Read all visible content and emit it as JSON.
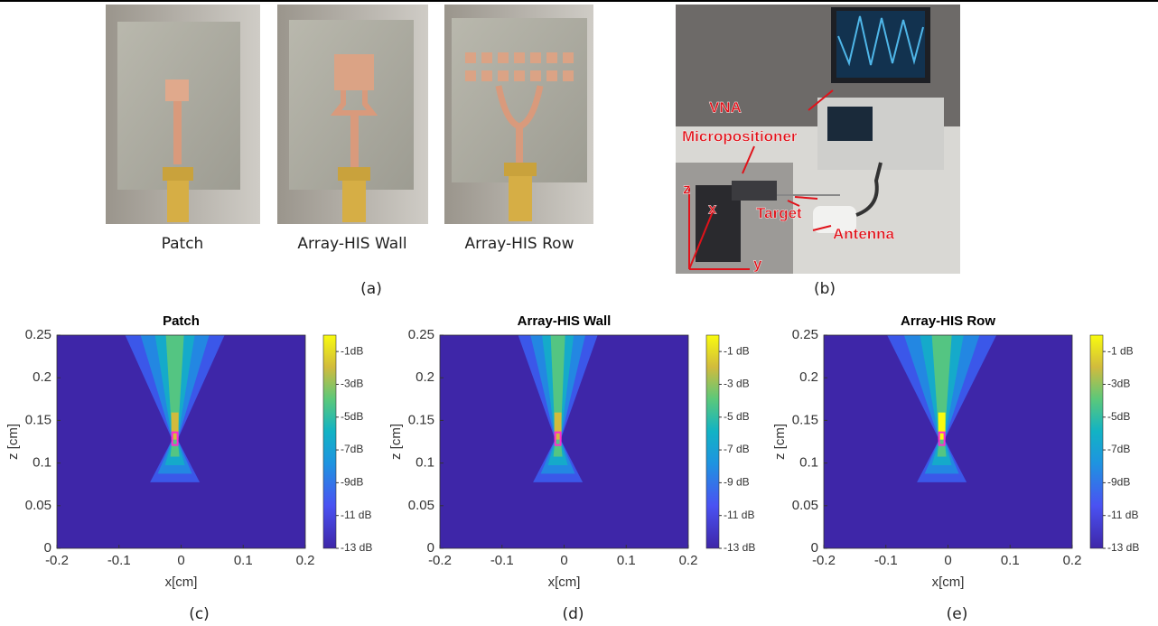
{
  "figure": {
    "photos": [
      "Patch",
      "Array-HIS Wall",
      "Array-HIS Row"
    ],
    "caption_a": "(a)",
    "setup_labels": {
      "vna": "VNA",
      "micropositioner": "Micropositioner",
      "target": "Target",
      "antenna": "Antenna",
      "z": "z",
      "x": "x",
      "y": "y"
    },
    "caption_b": "(b)",
    "plots": [
      {
        "title": "Patch",
        "xlabel": "x[cm]",
        "ylabel": "z [cm]",
        "caption": "(c)",
        "xlim": [
          -0.2,
          0.2
        ],
        "xticks": [
          -0.2,
          -0.1,
          0,
          0.1,
          0.2
        ],
        "ylim": [
          0,
          0.25
        ],
        "yticks": [
          0,
          0.05,
          0.1,
          0.15,
          0.2,
          0.25
        ],
        "clim": [
          -13,
          0
        ],
        "cticks": [
          {
            "value": -1,
            "label": "-1dB"
          },
          {
            "value": -3,
            "label": "-3dB"
          },
          {
            "value": -5,
            "label": "-5dB"
          },
          {
            "value": -7,
            "label": "-7dB"
          },
          {
            "value": -9,
            "label": "-9dB"
          },
          {
            "value": -11,
            "label": "-11 dB"
          },
          {
            "value": -13,
            "label": "-13 dB"
          }
        ]
      },
      {
        "title": "Array-HIS Wall",
        "xlabel": "x[cm]",
        "ylabel": "z [cm]",
        "caption": "(d)",
        "xlim": [
          -0.2,
          0.2
        ],
        "xticks": [
          -0.2,
          -0.1,
          0,
          0.1,
          0.2
        ],
        "ylim": [
          0,
          0.25
        ],
        "yticks": [
          0,
          0.05,
          0.1,
          0.15,
          0.2,
          0.25
        ],
        "clim": [
          -13,
          0
        ],
        "cticks": [
          {
            "value": -1,
            "label": "-1 dB"
          },
          {
            "value": -3,
            "label": "-3 dB"
          },
          {
            "value": -5,
            "label": "-5 dB"
          },
          {
            "value": -7,
            "label": "-7 dB"
          },
          {
            "value": -9,
            "label": "-9 dB"
          },
          {
            "value": -11,
            "label": "-11 dB"
          },
          {
            "value": -13,
            "label": "-13 dB"
          }
        ]
      },
      {
        "title": "Array-HIS Row",
        "xlabel": "x[cm]",
        "ylabel": "z [cm]",
        "caption": "(e)",
        "xlim": [
          -0.2,
          0.2
        ],
        "xticks": [
          -0.2,
          -0.1,
          0,
          0.1,
          0.2
        ],
        "ylim": [
          0,
          0.25
        ],
        "yticks": [
          0,
          0.05,
          0.1,
          0.15,
          0.2,
          0.25
        ],
        "clim": [
          -13,
          0
        ],
        "cticks": [
          {
            "value": -1,
            "label": "-1 dB"
          },
          {
            "value": -3,
            "label": "-3dB"
          },
          {
            "value": -5,
            "label": "-5dB"
          },
          {
            "value": -7,
            "label": "-7dB"
          },
          {
            "value": -9,
            "label": "-9dB"
          },
          {
            "value": -11,
            "label": "-11 dB"
          },
          {
            "value": -13,
            "label": "-13 dB"
          }
        ]
      }
    ]
  }
}
